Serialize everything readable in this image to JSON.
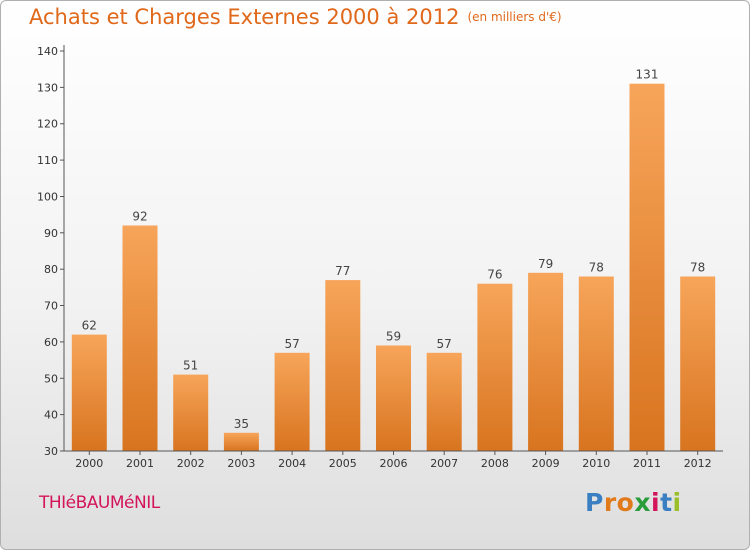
{
  "header": {
    "title": "Achats et Charges Externes 2000 à 2012",
    "subtitle": "(en milliers d'€)"
  },
  "footer": {
    "commune": "THIéBAUMéNIL",
    "brand": "Proxiti",
    "brand_letters": [
      "P",
      "r",
      "o",
      "x",
      "i",
      "t",
      "i"
    ],
    "brand_colors": [
      "#3a7fc1",
      "#e07a1a",
      "#e07a1a",
      "#2a9d3a",
      "#d4145a",
      "#3a7fc1",
      "#9bbf2a"
    ]
  },
  "colors": {
    "accent": "#e0681a",
    "bar_top": "#f7a55a",
    "bar_bottom": "#d8741f",
    "axis": "#555555",
    "commune": "#d4145a"
  },
  "chart_data": {
    "type": "bar",
    "title": "Achats et Charges Externes 2000 à 2012",
    "subtitle": "(en milliers d'€)",
    "categories": [
      "2000",
      "2001",
      "2002",
      "2003",
      "2004",
      "2005",
      "2006",
      "2007",
      "2008",
      "2009",
      "2010",
      "2011",
      "2012"
    ],
    "values": [
      62,
      92,
      51,
      35,
      57,
      77,
      59,
      57,
      76,
      79,
      78,
      131,
      78
    ],
    "ylim": [
      30,
      140
    ],
    "yticks": [
      30,
      40,
      50,
      60,
      70,
      80,
      90,
      100,
      110,
      120,
      130,
      140
    ],
    "xlabel": "",
    "ylabel": "",
    "grid": false,
    "legend": "none"
  }
}
